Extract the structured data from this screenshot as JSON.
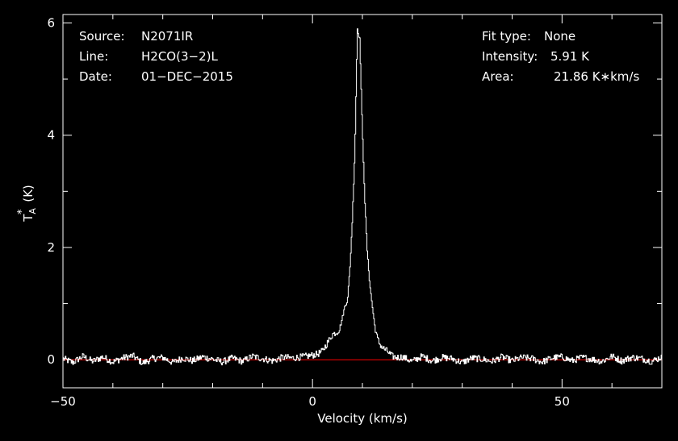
{
  "info_left": {
    "source_label": "Source:",
    "source_value": "N2071IR",
    "line_label": "Line:",
    "line_value": "H2CO(3−2)L",
    "date_label": "Date:",
    "date_value": "01−DEC−2015"
  },
  "info_right": {
    "fit_label": "Fit type:",
    "fit_value": "None",
    "intensity_label": "Intensity:",
    "intensity_value": "5.91 K",
    "area_label": "Area:",
    "area_value": "21.86 K∗km/s"
  },
  "colors": {
    "background": "#000000",
    "axes": "#ffffff",
    "spectrum": "#ffffff",
    "baseline": "#ff0000"
  },
  "chart_data": {
    "type": "line",
    "xlabel": "Velocity (km/s)",
    "ylabel": "T*A (K)",
    "xlim": [
      -50,
      70
    ],
    "ylim": [
      -0.5,
      6.15
    ],
    "xticks": [
      -50,
      0,
      50
    ],
    "xtick_labels": [
      "−50",
      "0",
      "50"
    ],
    "yticks": [
      0,
      2,
      4,
      6
    ],
    "ytick_labels": [
      "0",
      "2",
      "4",
      "6"
    ],
    "grid": false,
    "baseline_y": 0,
    "series": [
      {
        "style": "step",
        "x": [
          -50,
          -48,
          -46,
          -44,
          -42,
          -40,
          -38,
          -36,
          -34,
          -32,
          -30,
          -28,
          -26,
          -24,
          -22,
          -20,
          -18,
          -16,
          -14,
          -12,
          -10,
          -8,
          -6,
          -4,
          -2,
          0,
          1,
          2,
          3,
          4,
          5,
          5.5,
          6,
          6.5,
          7,
          7.5,
          8,
          8.5,
          9,
          9.5,
          10,
          10.5,
          11,
          11.5,
          12,
          12.5,
          13,
          13.5,
          14,
          15,
          16,
          17,
          18,
          20,
          22,
          24,
          26,
          28,
          30,
          32,
          34,
          36,
          38,
          40,
          42,
          44,
          46,
          48,
          50,
          52,
          54,
          56,
          58,
          60,
          62,
          64,
          66,
          68,
          70
        ],
        "values": [
          0.02,
          -0.05,
          0.06,
          -0.03,
          0.05,
          -0.04,
          0.03,
          0.07,
          -0.06,
          0.02,
          0.04,
          -0.05,
          0.03,
          -0.02,
          0.05,
          0.01,
          -0.04,
          0.03,
          -0.03,
          0.06,
          0.02,
          -0.02,
          0.04,
          0.03,
          0.05,
          0.08,
          0.1,
          0.15,
          0.3,
          0.45,
          0.5,
          0.55,
          0.75,
          0.95,
          1.05,
          1.6,
          2.5,
          3.7,
          5.91,
          5.7,
          4.1,
          2.85,
          1.9,
          1.35,
          0.95,
          0.6,
          0.38,
          0.28,
          0.22,
          0.15,
          0.06,
          0.04,
          0.05,
          -0.03,
          0.06,
          -0.02,
          0.04,
          0.02,
          -0.05,
          0.03,
          0.01,
          -0.03,
          0.05,
          -0.02,
          0.04,
          0.02,
          -0.04,
          0.03,
          0.05,
          -0.02,
          0.04,
          0.01,
          -0.03,
          0.06,
          -0.02,
          0.04,
          0.02,
          -0.03,
          0.05
        ]
      }
    ]
  }
}
